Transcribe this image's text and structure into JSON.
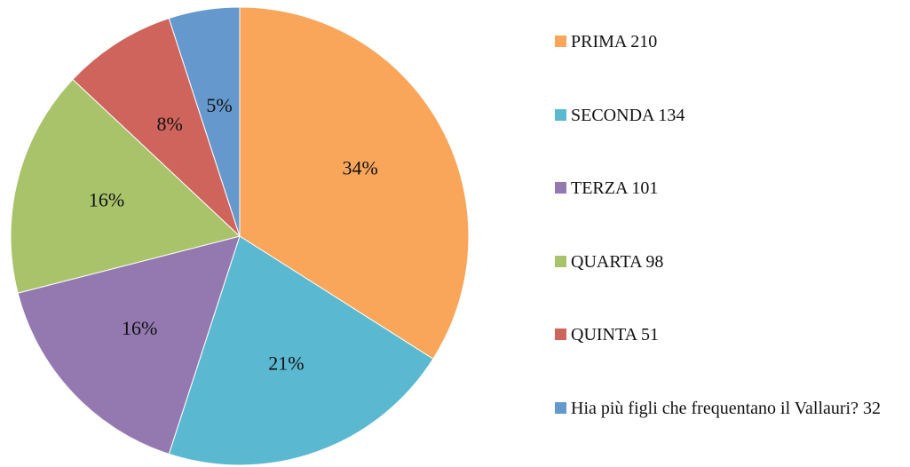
{
  "chart_data": {
    "type": "pie",
    "categories": [
      "PRIMA 210",
      "SECONDA 134",
      "TERZA 101",
      "QUARTA 98",
      "QUINTA 51",
      "Hia più figli che frequentano il Vallauri? 32"
    ],
    "values": [
      34,
      21,
      16,
      16,
      8,
      5
    ],
    "value_labels": [
      "34%",
      "21%",
      "16%",
      "16%",
      "8%",
      "5%"
    ],
    "colors": [
      "#f9a65a",
      "#5bb8d1",
      "#9479b0",
      "#a8c36a",
      "#cf645d",
      "#6598cc"
    ],
    "legend": "right"
  }
}
